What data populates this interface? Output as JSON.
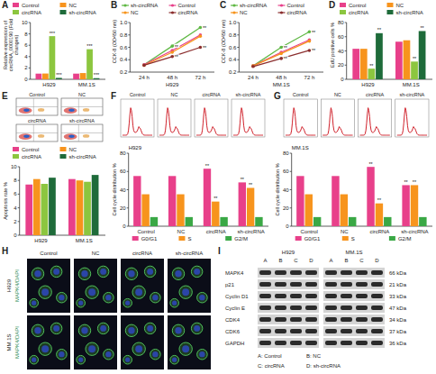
{
  "chart_data": [
    {
      "panel": "A",
      "type": "bar",
      "y_label": "Relative expression of circRNA_0000190 (Fold changes)",
      "categories": [
        "H929",
        "MM.1S"
      ],
      "series": [
        {
          "name": "Control",
          "color": "#e8408a",
          "values": [
            1.0,
            1.0
          ]
        },
        {
          "name": "NC",
          "color": "#f7941d",
          "values": [
            1.02,
            1.1
          ]
        },
        {
          "name": "circRNA",
          "color": "#8cc63f",
          "values": [
            7.6,
            5.3
          ]
        },
        {
          "name": "sh-circRNA",
          "color": "#1e6b3a",
          "values": [
            0.25,
            0.2
          ]
        }
      ],
      "ylim": [
        0,
        10
      ],
      "yticks": [
        0,
        2,
        4,
        6,
        8,
        10
      ],
      "legend": "top",
      "annotations": [
        {
          "text": "***",
          "series": 2,
          "category": 0
        },
        {
          "text": "***",
          "series": 3,
          "category": 0
        },
        {
          "text": "***",
          "series": 2,
          "category": 1
        },
        {
          "text": "***",
          "series": 3,
          "category": 1
        }
      ]
    },
    {
      "panel": "B",
      "type": "line",
      "title": "H929",
      "y_label": "CCK-8 (OD450 nm)",
      "categories": [
        "24 h",
        "48 h",
        "72 h"
      ],
      "marker": "circle",
      "series": [
        {
          "name": "sh-circRNA",
          "color": "#5fb844",
          "values": [
            0.32,
            0.62,
            0.92
          ]
        },
        {
          "name": "Control",
          "color": "#e8408a",
          "values": [
            0.32,
            0.55,
            0.8
          ]
        },
        {
          "name": "NC",
          "color": "#f7941d",
          "values": [
            0.31,
            0.52,
            0.78
          ]
        },
        {
          "name": "circRNA",
          "color": "#8b2e2e",
          "values": [
            0.31,
            0.45,
            0.6
          ]
        }
      ],
      "ylim": [
        0.2,
        1.0
      ],
      "yticks": [
        0.2,
        0.4,
        0.6,
        0.8,
        {
          "value": 1,
          "label": "1.0"
        }
      ],
      "legend": "top",
      "annotations": [
        {
          "text": "**",
          "series": 0,
          "category": 1
        },
        {
          "text": "**",
          "series": 0,
          "category": 2
        },
        {
          "text": "**",
          "series": 3,
          "category": 1
        },
        {
          "text": "**",
          "series": 3,
          "category": 2
        }
      ]
    },
    {
      "panel": "C",
      "type": "line",
      "title": "MM.1S",
      "y_label": "CCK-8 (OD450 nm)",
      "categories": [
        "24 h",
        "48 h",
        "72 h"
      ],
      "marker": "circle",
      "series": [
        {
          "name": "sh-circRNA",
          "color": "#5fb844",
          "values": [
            0.3,
            0.6,
            0.85
          ]
        },
        {
          "name": "Control",
          "color": "#e8408a",
          "values": [
            0.3,
            0.52,
            0.72
          ]
        },
        {
          "name": "NC",
          "color": "#f7941d",
          "values": [
            0.3,
            0.5,
            0.7
          ]
        },
        {
          "name": "circRNA",
          "color": "#8b2e2e",
          "values": [
            0.29,
            0.42,
            0.55
          ]
        }
      ],
      "ylim": [
        0.2,
        1.0
      ],
      "yticks": [
        0.2,
        0.4,
        0.6,
        0.8,
        {
          "value": 1,
          "label": "1.0"
        }
      ],
      "legend": "top",
      "annotations": [
        {
          "text": "**",
          "series": 0,
          "category": 1
        },
        {
          "text": "**",
          "series": 0,
          "category": 2
        },
        {
          "text": "**",
          "series": 3,
          "category": 1
        },
        {
          "text": "**",
          "series": 3,
          "category": 2
        }
      ]
    },
    {
      "panel": "D",
      "type": "bar",
      "y_label": "EdU positive cells %",
      "categories": [
        "H929",
        "MM.1S"
      ],
      "series": [
        {
          "name": "Control",
          "color": "#e8408a",
          "values": [
            43,
            53
          ]
        },
        {
          "name": "NC",
          "color": "#f7941d",
          "values": [
            43,
            55
          ]
        },
        {
          "name": "circRNA",
          "color": "#8cc63f",
          "values": [
            15,
            25
          ]
        },
        {
          "name": "sh-circRNA",
          "color": "#1e6b3a",
          "values": [
            65,
            68
          ]
        }
      ],
      "ylim": [
        0,
        80
      ],
      "yticks": [
        0,
        20,
        40,
        60,
        80
      ],
      "legend": "top",
      "annotations": [
        {
          "text": "**",
          "series": 2,
          "category": 0
        },
        {
          "text": "**",
          "series": 3,
          "category": 0
        },
        {
          "text": "**",
          "series": 2,
          "category": 1
        },
        {
          "text": "**",
          "series": 3,
          "category": 1
        }
      ]
    },
    {
      "panel": "E",
      "type": "bar",
      "y_label": "Apoptosis rate %",
      "image_labels": [
        "Control",
        "NC",
        "circRNA",
        "sh-circRNA"
      ],
      "categories": [
        "H929",
        "MM.1S"
      ],
      "series": [
        {
          "name": "Control",
          "color": "#e8408a",
          "values": [
            7.4,
            8.2
          ]
        },
        {
          "name": "NC",
          "color": "#f7941d",
          "values": [
            8.2,
            8.0
          ]
        },
        {
          "name": "circRNA",
          "color": "#8cc63f",
          "values": [
            7.5,
            7.8
          ]
        },
        {
          "name": "sh-circRNA",
          "color": "#1e6b3a",
          "values": [
            8.4,
            8.8
          ]
        }
      ],
      "ylim": [
        0,
        10
      ],
      "yticks": [
        0,
        2,
        4,
        6,
        8,
        10
      ],
      "legend": "top"
    },
    {
      "panel": "F",
      "type": "bar",
      "title": "H929",
      "y_label": "Cell cycle distribution %",
      "image_labels": [
        "Control",
        "NC",
        "circRNA",
        "sh-circRNA"
      ],
      "categories": [
        "Control",
        "NC",
        "circRNA",
        "sh-circRNA"
      ],
      "series": [
        {
          "name": "G0/G1",
          "color": "#e8408a",
          "values": [
            55,
            55,
            63,
            48
          ]
        },
        {
          "name": "S",
          "color": "#f7941d",
          "values": [
            35,
            35,
            27,
            42
          ]
        },
        {
          "name": "G2/M",
          "color": "#3aa845",
          "values": [
            10,
            10,
            10,
            10
          ]
        }
      ],
      "ylim": [
        0,
        80
      ],
      "yticks": [
        0,
        20,
        40,
        60,
        80
      ],
      "legend": "bottom",
      "annotations": [
        {
          "text": "**",
          "series": 0,
          "category": 2
        },
        {
          "text": "**",
          "series": 1,
          "category": 2
        },
        {
          "text": "**",
          "series": 0,
          "category": 3
        },
        {
          "text": "**",
          "series": 1,
          "category": 3
        }
      ]
    },
    {
      "panel": "G",
      "type": "bar",
      "title": "MM.1S",
      "y_label": "Cell cycle distribution %",
      "image_labels": [
        "Control",
        "NC",
        "circRNA",
        "sh-circRNA"
      ],
      "categories": [
        "Control",
        "NC",
        "circRNA",
        "sh-circRNA"
      ],
      "series": [
        {
          "name": "G0/G1",
          "color": "#e8408a",
          "values": [
            55,
            55,
            65,
            45
          ]
        },
        {
          "name": "S",
          "color": "#f7941d",
          "values": [
            35,
            35,
            25,
            45
          ]
        },
        {
          "name": "G2/M",
          "color": "#3aa845",
          "values": [
            10,
            10,
            10,
            10
          ]
        }
      ],
      "ylim": [
        0,
        80
      ],
      "yticks": [
        0,
        20,
        40,
        60,
        80
      ],
      "legend": "bottom",
      "annotations": [
        {
          "text": "**",
          "series": 0,
          "category": 2
        },
        {
          "text": "**",
          "series": 1,
          "category": 2
        },
        {
          "text": "**",
          "series": 0,
          "category": 3
        },
        {
          "text": "**",
          "series": 1,
          "category": 3
        }
      ]
    }
  ],
  "panel_H": {
    "panel": "H",
    "columns": [
      "Control",
      "NC",
      "circRNA",
      "sh-circRNA"
    ],
    "rows": [
      "H929",
      "MM.1S"
    ],
    "stain": "MAPK4/DAPI"
  },
  "panel_I": {
    "panel": "I",
    "groups": [
      "H929",
      "MM.1S"
    ],
    "lanes": [
      "A",
      "B",
      "C",
      "D"
    ],
    "proteins": [
      {
        "name": "MAPK4",
        "size": "66 kDa"
      },
      {
        "name": "p21",
        "size": "21 kDa"
      },
      {
        "name": "Cyclin D1",
        "size": "33 kDa"
      },
      {
        "name": "Cyclin E",
        "size": "47 kDa"
      },
      {
        "name": "CDK4",
        "size": "34 kDa"
      },
      {
        "name": "CDK6",
        "size": "37 kDa"
      },
      {
        "name": "GAPDH",
        "size": "36 kDa"
      }
    ],
    "key": [
      "A: Control",
      "B: NC",
      "C: circRNA",
      "D: sh-circRNA"
    ]
  }
}
